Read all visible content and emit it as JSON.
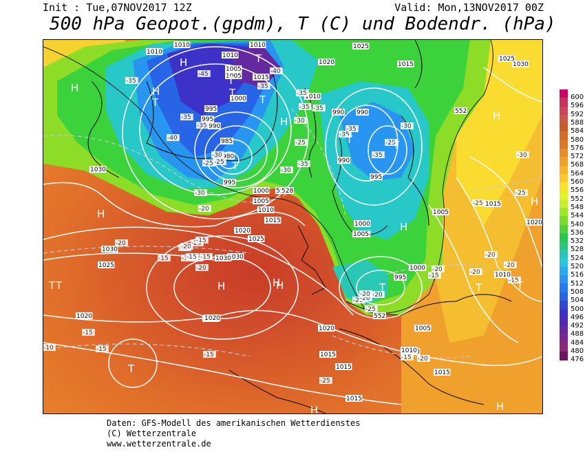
{
  "header": {
    "init": "Init : Tue,07NOV2017 12Z",
    "valid": "Valid: Mon,13NOV2017 00Z",
    "title": "500 hPa Geopot.(gpdm), T (C) und Bodendr. (hPa)"
  },
  "footer": {
    "line1": "Daten: GFS-Modell des amerikanischen Wetterdienstes",
    "line2": "(C) Wetterzentrale",
    "line3": "www.wetterzentrale.de"
  },
  "colorbar": {
    "labels": [
      "600",
      "596",
      "592",
      "588",
      "584",
      "580",
      "576",
      "572",
      "568",
      "564",
      "560",
      "556",
      "552",
      "548",
      "544",
      "540",
      "536",
      "532",
      "528",
      "524",
      "520",
      "516",
      "512",
      "508",
      "504",
      "500",
      "496",
      "492",
      "488",
      "484",
      "480",
      "476"
    ],
    "colors": [
      "#cc0066",
      "#c8325a",
      "#c8465a",
      "#c85a46",
      "#cc5a28",
      "#d26e28",
      "#dc7828",
      "#e68c28",
      "#f0a028",
      "#f5b428",
      "#fac828",
      "#f5e628",
      "#e6f028",
      "#c8f028",
      "#a0e628",
      "#78dc28",
      "#50d23c",
      "#28c850",
      "#28c878",
      "#28c8b4",
      "#28c8dc",
      "#28aaf0",
      "#2896f0",
      "#2878f0",
      "#2864e6",
      "#3246d2",
      "#3c32c8",
      "#5028b4",
      "#6428a0",
      "#78288c",
      "#8c2878",
      "#6e1464"
    ]
  },
  "map": {
    "pressure_labels": [
      {
        "text": "1010"
      },
      {
        "text": "1010"
      },
      {
        "text": "1010"
      },
      {
        "text": "1010"
      },
      {
        "text": "1025"
      },
      {
        "text": "1020"
      },
      {
        "text": "1015"
      },
      {
        "text": "1005"
      },
      {
        "text": "1015"
      },
      {
        "text": "1010"
      },
      {
        "text": "1005"
      },
      {
        "text": "1000"
      },
      {
        "text": "995"
      },
      {
        "text": "995"
      },
      {
        "text": "990"
      },
      {
        "text": "990"
      },
      {
        "text": "990"
      },
      {
        "text": "985"
      },
      {
        "text": "980"
      },
      {
        "text": "995"
      },
      {
        "text": "990"
      },
      {
        "text": "995"
      },
      {
        "text": "1000"
      },
      {
        "text": "1005"
      },
      {
        "text": "1010"
      },
      {
        "text": "1015"
      },
      {
        "text": "1020"
      },
      {
        "text": "1025"
      },
      {
        "text": "1030"
      },
      {
        "text": "1030"
      },
      {
        "text": "1025"
      },
      {
        "text": "1030"
      },
      {
        "text": "1020"
      },
      {
        "text": "1025"
      },
      {
        "text": "1020"
      },
      {
        "text": "1015"
      },
      {
        "text": "1015"
      },
      {
        "text": "1010"
      },
      {
        "text": "1005"
      },
      {
        "text": "1000"
      },
      {
        "text": "995"
      },
      {
        "text": "1015"
      },
      {
        "text": "1010"
      },
      {
        "text": "1020"
      },
      {
        "text": "1025"
      },
      {
        "text": "1030"
      },
      {
        "text": "1005"
      },
      {
        "text": "1000"
      },
      {
        "text": "1005"
      },
      {
        "text": "1015"
      },
      {
        "text": "1030"
      },
      {
        "text": "1020"
      },
      {
        "text": "1000"
      },
      {
        "text": "1005"
      },
      {
        "text": "1015"
      },
      {
        "text": "1010"
      }
    ],
    "temp_labels": [
      "-35",
      "-45",
      "-35",
      "-40",
      "-35",
      "-35",
      "-35",
      "-35",
      "-30",
      "-35",
      "-40",
      "-35",
      "-35",
      "-35",
      "-30",
      "-25",
      "-35",
      "-30",
      "-30",
      "-25",
      "-25",
      "-25",
      "-30",
      "-20",
      "-20",
      "-25",
      "-20",
      "-20",
      "-15",
      "-15",
      "-15",
      "-15",
      "-15",
      "-20",
      "-15",
      "-10",
      "-15",
      "-15",
      "-15",
      "-20",
      "-20",
      "-20",
      "-25",
      "-20",
      "-20",
      "-20",
      "-20",
      "-20",
      "-15",
      "-15",
      "-15",
      "-25",
      "-25",
      "-20",
      "-30",
      "-25"
    ],
    "geopot_labels": [
      "552",
      "552",
      "552",
      "528"
    ],
    "centers": [
      "H",
      "H",
      "H",
      "T",
      "T",
      "T",
      "T",
      "T",
      "T",
      "T",
      "T",
      "H",
      "H",
      "H",
      "H",
      "H",
      "T",
      "T",
      "H",
      "H",
      "T",
      "H",
      "T",
      "T",
      "H",
      "T",
      "H"
    ]
  }
}
